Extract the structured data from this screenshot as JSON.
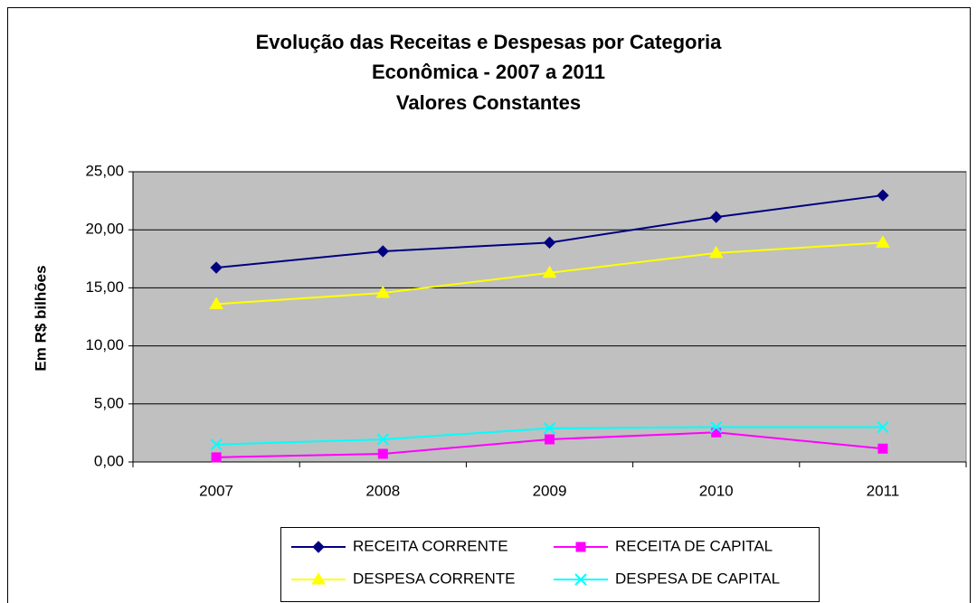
{
  "chart_data": {
    "type": "line",
    "title": [
      "Evolução das Receitas e Despesas por Categoria",
      "Econômica - 2007 a 2011",
      "Valores Constantes"
    ],
    "y_label": "Em R$ bilhões",
    "categories": [
      "2007",
      "2008",
      "2009",
      "2010",
      "2011"
    ],
    "series": [
      {
        "name": "RECEITA CORRENTE",
        "color": "#000080",
        "marker": "diamond",
        "values": [
          16.74,
          18.15,
          18.9,
          21.1,
          22.97
        ]
      },
      {
        "name": "RECEITA DE CAPITAL",
        "color": "#ff00ff",
        "marker": "square",
        "values": [
          0.4,
          0.7,
          1.95,
          2.55,
          1.15
        ]
      },
      {
        "name": "DESPESA CORRENTE",
        "color": "#ffff00",
        "marker": "triangle",
        "values": [
          13.6,
          14.56,
          16.3,
          18.0,
          18.9
        ]
      },
      {
        "name": "DESPESA DE CAPITAL",
        "color": "#00ffff",
        "marker": "x",
        "values": [
          1.5,
          1.95,
          2.9,
          3.0,
          3.0
        ]
      }
    ],
    "ylim": [
      0,
      25
    ],
    "yticks": [
      {
        "value": 0,
        "label": "0,00"
      },
      {
        "value": 5,
        "label": "5,00"
      },
      {
        "value": 10,
        "label": "10,00"
      },
      {
        "value": 15,
        "label": "15,00"
      },
      {
        "value": 20,
        "label": "20,00"
      },
      {
        "value": 25,
        "label": "25,00"
      }
    ],
    "grid": true,
    "plot_background": "#c0c0c0",
    "legend": "bottom"
  }
}
